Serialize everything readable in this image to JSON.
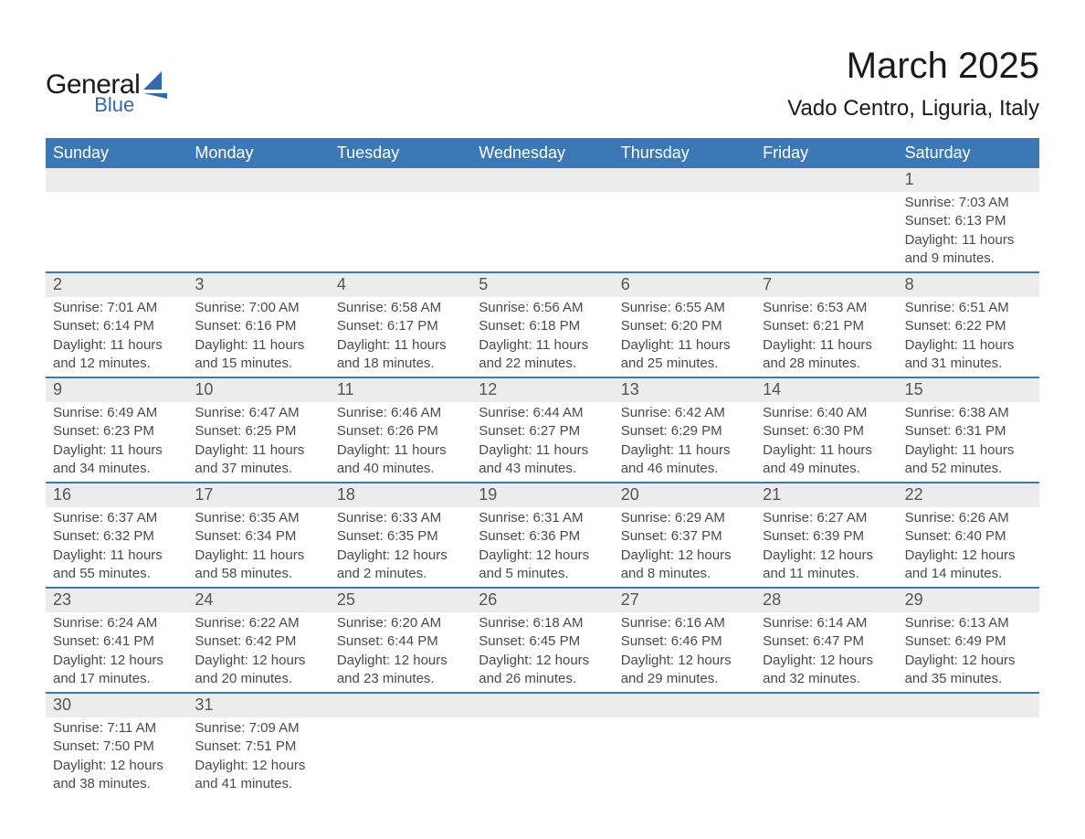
{
  "logo": {
    "text_top": "General",
    "text_bottom": "Blue",
    "text_top_color": "#1a1a1a",
    "text_bottom_color": "#2f6bad",
    "shape_color": "#2f6bad"
  },
  "header": {
    "month_title": "March 2025",
    "location": "Vado Centro, Liguria, Italy"
  },
  "calendar": {
    "type": "calendar-table",
    "header_bg": "#3b78b5",
    "header_fg": "#ffffff",
    "daynum_row_bg": "#ececec",
    "week_divider_color": "#3b78b5",
    "body_bg": "#ffffff",
    "text_color": "#4a4a4a",
    "day_names": [
      "Sunday",
      "Monday",
      "Tuesday",
      "Wednesday",
      "Thursday",
      "Friday",
      "Saturday"
    ],
    "weeks": [
      [
        {
          "day": "",
          "sunrise": "",
          "sunset": "",
          "daylight1": "",
          "daylight2": ""
        },
        {
          "day": "",
          "sunrise": "",
          "sunset": "",
          "daylight1": "",
          "daylight2": ""
        },
        {
          "day": "",
          "sunrise": "",
          "sunset": "",
          "daylight1": "",
          "daylight2": ""
        },
        {
          "day": "",
          "sunrise": "",
          "sunset": "",
          "daylight1": "",
          "daylight2": ""
        },
        {
          "day": "",
          "sunrise": "",
          "sunset": "",
          "daylight1": "",
          "daylight2": ""
        },
        {
          "day": "",
          "sunrise": "",
          "sunset": "",
          "daylight1": "",
          "daylight2": ""
        },
        {
          "day": "1",
          "sunrise": "Sunrise: 7:03 AM",
          "sunset": "Sunset: 6:13 PM",
          "daylight1": "Daylight: 11 hours",
          "daylight2": "and 9 minutes."
        }
      ],
      [
        {
          "day": "2",
          "sunrise": "Sunrise: 7:01 AM",
          "sunset": "Sunset: 6:14 PM",
          "daylight1": "Daylight: 11 hours",
          "daylight2": "and 12 minutes."
        },
        {
          "day": "3",
          "sunrise": "Sunrise: 7:00 AM",
          "sunset": "Sunset: 6:16 PM",
          "daylight1": "Daylight: 11 hours",
          "daylight2": "and 15 minutes."
        },
        {
          "day": "4",
          "sunrise": "Sunrise: 6:58 AM",
          "sunset": "Sunset: 6:17 PM",
          "daylight1": "Daylight: 11 hours",
          "daylight2": "and 18 minutes."
        },
        {
          "day": "5",
          "sunrise": "Sunrise: 6:56 AM",
          "sunset": "Sunset: 6:18 PM",
          "daylight1": "Daylight: 11 hours",
          "daylight2": "and 22 minutes."
        },
        {
          "day": "6",
          "sunrise": "Sunrise: 6:55 AM",
          "sunset": "Sunset: 6:20 PM",
          "daylight1": "Daylight: 11 hours",
          "daylight2": "and 25 minutes."
        },
        {
          "day": "7",
          "sunrise": "Sunrise: 6:53 AM",
          "sunset": "Sunset: 6:21 PM",
          "daylight1": "Daylight: 11 hours",
          "daylight2": "and 28 minutes."
        },
        {
          "day": "8",
          "sunrise": "Sunrise: 6:51 AM",
          "sunset": "Sunset: 6:22 PM",
          "daylight1": "Daylight: 11 hours",
          "daylight2": "and 31 minutes."
        }
      ],
      [
        {
          "day": "9",
          "sunrise": "Sunrise: 6:49 AM",
          "sunset": "Sunset: 6:23 PM",
          "daylight1": "Daylight: 11 hours",
          "daylight2": "and 34 minutes."
        },
        {
          "day": "10",
          "sunrise": "Sunrise: 6:47 AM",
          "sunset": "Sunset: 6:25 PM",
          "daylight1": "Daylight: 11 hours",
          "daylight2": "and 37 minutes."
        },
        {
          "day": "11",
          "sunrise": "Sunrise: 6:46 AM",
          "sunset": "Sunset: 6:26 PM",
          "daylight1": "Daylight: 11 hours",
          "daylight2": "and 40 minutes."
        },
        {
          "day": "12",
          "sunrise": "Sunrise: 6:44 AM",
          "sunset": "Sunset: 6:27 PM",
          "daylight1": "Daylight: 11 hours",
          "daylight2": "and 43 minutes."
        },
        {
          "day": "13",
          "sunrise": "Sunrise: 6:42 AM",
          "sunset": "Sunset: 6:29 PM",
          "daylight1": "Daylight: 11 hours",
          "daylight2": "and 46 minutes."
        },
        {
          "day": "14",
          "sunrise": "Sunrise: 6:40 AM",
          "sunset": "Sunset: 6:30 PM",
          "daylight1": "Daylight: 11 hours",
          "daylight2": "and 49 minutes."
        },
        {
          "day": "15",
          "sunrise": "Sunrise: 6:38 AM",
          "sunset": "Sunset: 6:31 PM",
          "daylight1": "Daylight: 11 hours",
          "daylight2": "and 52 minutes."
        }
      ],
      [
        {
          "day": "16",
          "sunrise": "Sunrise: 6:37 AM",
          "sunset": "Sunset: 6:32 PM",
          "daylight1": "Daylight: 11 hours",
          "daylight2": "and 55 minutes."
        },
        {
          "day": "17",
          "sunrise": "Sunrise: 6:35 AM",
          "sunset": "Sunset: 6:34 PM",
          "daylight1": "Daylight: 11 hours",
          "daylight2": "and 58 minutes."
        },
        {
          "day": "18",
          "sunrise": "Sunrise: 6:33 AM",
          "sunset": "Sunset: 6:35 PM",
          "daylight1": "Daylight: 12 hours",
          "daylight2": "and 2 minutes."
        },
        {
          "day": "19",
          "sunrise": "Sunrise: 6:31 AM",
          "sunset": "Sunset: 6:36 PM",
          "daylight1": "Daylight: 12 hours",
          "daylight2": "and 5 minutes."
        },
        {
          "day": "20",
          "sunrise": "Sunrise: 6:29 AM",
          "sunset": "Sunset: 6:37 PM",
          "daylight1": "Daylight: 12 hours",
          "daylight2": "and 8 minutes."
        },
        {
          "day": "21",
          "sunrise": "Sunrise: 6:27 AM",
          "sunset": "Sunset: 6:39 PM",
          "daylight1": "Daylight: 12 hours",
          "daylight2": "and 11 minutes."
        },
        {
          "day": "22",
          "sunrise": "Sunrise: 6:26 AM",
          "sunset": "Sunset: 6:40 PM",
          "daylight1": "Daylight: 12 hours",
          "daylight2": "and 14 minutes."
        }
      ],
      [
        {
          "day": "23",
          "sunrise": "Sunrise: 6:24 AM",
          "sunset": "Sunset: 6:41 PM",
          "daylight1": "Daylight: 12 hours",
          "daylight2": "and 17 minutes."
        },
        {
          "day": "24",
          "sunrise": "Sunrise: 6:22 AM",
          "sunset": "Sunset: 6:42 PM",
          "daylight1": "Daylight: 12 hours",
          "daylight2": "and 20 minutes."
        },
        {
          "day": "25",
          "sunrise": "Sunrise: 6:20 AM",
          "sunset": "Sunset: 6:44 PM",
          "daylight1": "Daylight: 12 hours",
          "daylight2": "and 23 minutes."
        },
        {
          "day": "26",
          "sunrise": "Sunrise: 6:18 AM",
          "sunset": "Sunset: 6:45 PM",
          "daylight1": "Daylight: 12 hours",
          "daylight2": "and 26 minutes."
        },
        {
          "day": "27",
          "sunrise": "Sunrise: 6:16 AM",
          "sunset": "Sunset: 6:46 PM",
          "daylight1": "Daylight: 12 hours",
          "daylight2": "and 29 minutes."
        },
        {
          "day": "28",
          "sunrise": "Sunrise: 6:14 AM",
          "sunset": "Sunset: 6:47 PM",
          "daylight1": "Daylight: 12 hours",
          "daylight2": "and 32 minutes."
        },
        {
          "day": "29",
          "sunrise": "Sunrise: 6:13 AM",
          "sunset": "Sunset: 6:49 PM",
          "daylight1": "Daylight: 12 hours",
          "daylight2": "and 35 minutes."
        }
      ],
      [
        {
          "day": "30",
          "sunrise": "Sunrise: 7:11 AM",
          "sunset": "Sunset: 7:50 PM",
          "daylight1": "Daylight: 12 hours",
          "daylight2": "and 38 minutes."
        },
        {
          "day": "31",
          "sunrise": "Sunrise: 7:09 AM",
          "sunset": "Sunset: 7:51 PM",
          "daylight1": "Daylight: 12 hours",
          "daylight2": "and 41 minutes."
        },
        {
          "day": "",
          "sunrise": "",
          "sunset": "",
          "daylight1": "",
          "daylight2": ""
        },
        {
          "day": "",
          "sunrise": "",
          "sunset": "",
          "daylight1": "",
          "daylight2": ""
        },
        {
          "day": "",
          "sunrise": "",
          "sunset": "",
          "daylight1": "",
          "daylight2": ""
        },
        {
          "day": "",
          "sunrise": "",
          "sunset": "",
          "daylight1": "",
          "daylight2": ""
        },
        {
          "day": "",
          "sunrise": "",
          "sunset": "",
          "daylight1": "",
          "daylight2": ""
        }
      ]
    ]
  }
}
